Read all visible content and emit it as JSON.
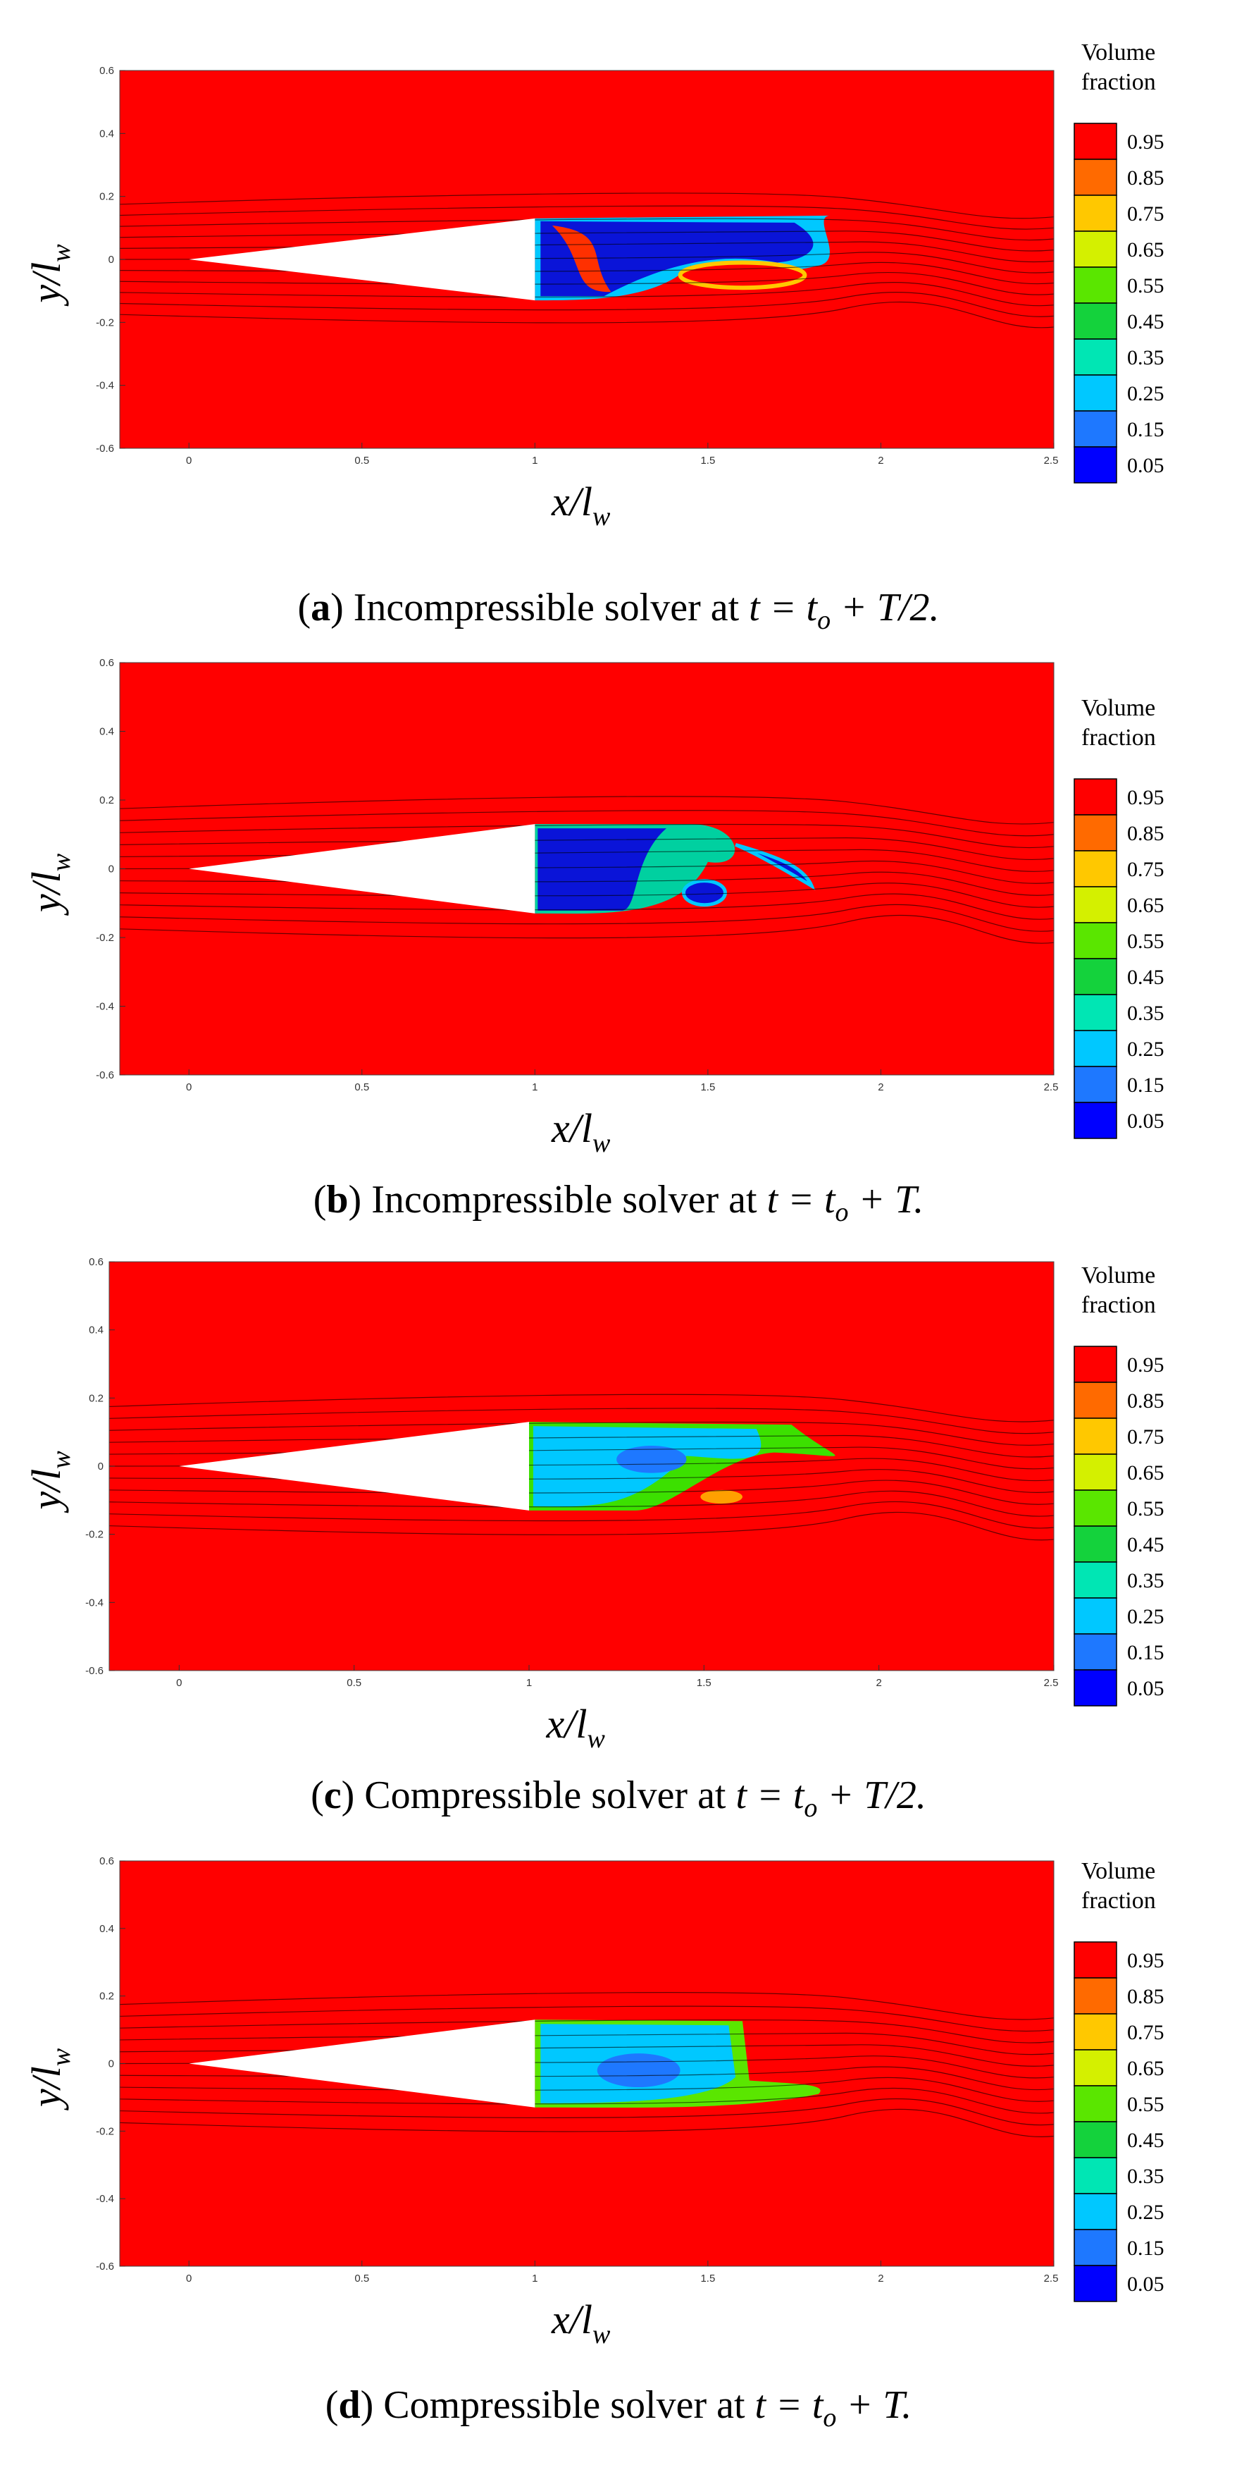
{
  "legend": {
    "title_line1": "Volume",
    "title_line2": "fraction",
    "levels": [
      "0.95",
      "0.85",
      "0.75",
      "0.65",
      "0.55",
      "0.45",
      "0.35",
      "0.25",
      "0.15",
      "0.05"
    ],
    "colors": [
      "#ff0000",
      "#ff6a00",
      "#ffc800",
      "#d4f000",
      "#5ae600",
      "#14d23c",
      "#00e6b4",
      "#00c8ff",
      "#1e78ff",
      "#0000ff"
    ]
  },
  "axes": {
    "xlabel_main": "x/l",
    "ylabel_main": "y/l",
    "label_sub": "w",
    "x_ticks": [
      "0",
      "0.5",
      "1",
      "1.5",
      "2",
      "2.5"
    ],
    "y_ticks": [
      "0.6",
      "0.4",
      "0.2",
      "0",
      "-0.2",
      "-0.4",
      "-0.6"
    ]
  },
  "colors": {
    "background_phase": "#ff0000",
    "wedge": "#ffffff",
    "cavity_blue": "#0a14d8",
    "cavity_cyan": "#00c8ff",
    "streamline": "#000000"
  },
  "chart_data": [
    {
      "type": "heatmap",
      "panel": "a",
      "caption_letter": "a",
      "caption_text": "Incompressible solver at ",
      "caption_math": "t = t",
      "caption_sub": "o",
      "caption_tail": " + T/2.",
      "xlim": [
        -0.2,
        2.5
      ],
      "ylim": [
        -0.6,
        0.6
      ],
      "style": "blue"
    },
    {
      "type": "heatmap",
      "panel": "b",
      "caption_letter": "b",
      "caption_text": "Incompressible solver at ",
      "caption_math": "t = t",
      "caption_sub": "o",
      "caption_tail": " + T.",
      "xlim": [
        -0.2,
        2.5
      ],
      "ylim": [
        -0.6,
        0.6
      ],
      "style": "blue2"
    },
    {
      "type": "heatmap",
      "panel": "c",
      "caption_letter": "c",
      "caption_text": "Compressible solver at ",
      "caption_math": "t = t",
      "caption_sub": "o",
      "caption_tail": " + T/2.",
      "xlim": [
        -0.2,
        2.5
      ],
      "ylim": [
        -0.6,
        0.6
      ],
      "style": "cyan"
    },
    {
      "type": "heatmap",
      "panel": "d",
      "caption_letter": "d",
      "caption_text": "Compressible solver at ",
      "caption_math": "t = t",
      "caption_sub": "o",
      "caption_tail": " + T.",
      "xlim": [
        -0.2,
        2.5
      ],
      "ylim": [
        -0.6,
        0.6
      ],
      "style": "cyan2"
    }
  ]
}
